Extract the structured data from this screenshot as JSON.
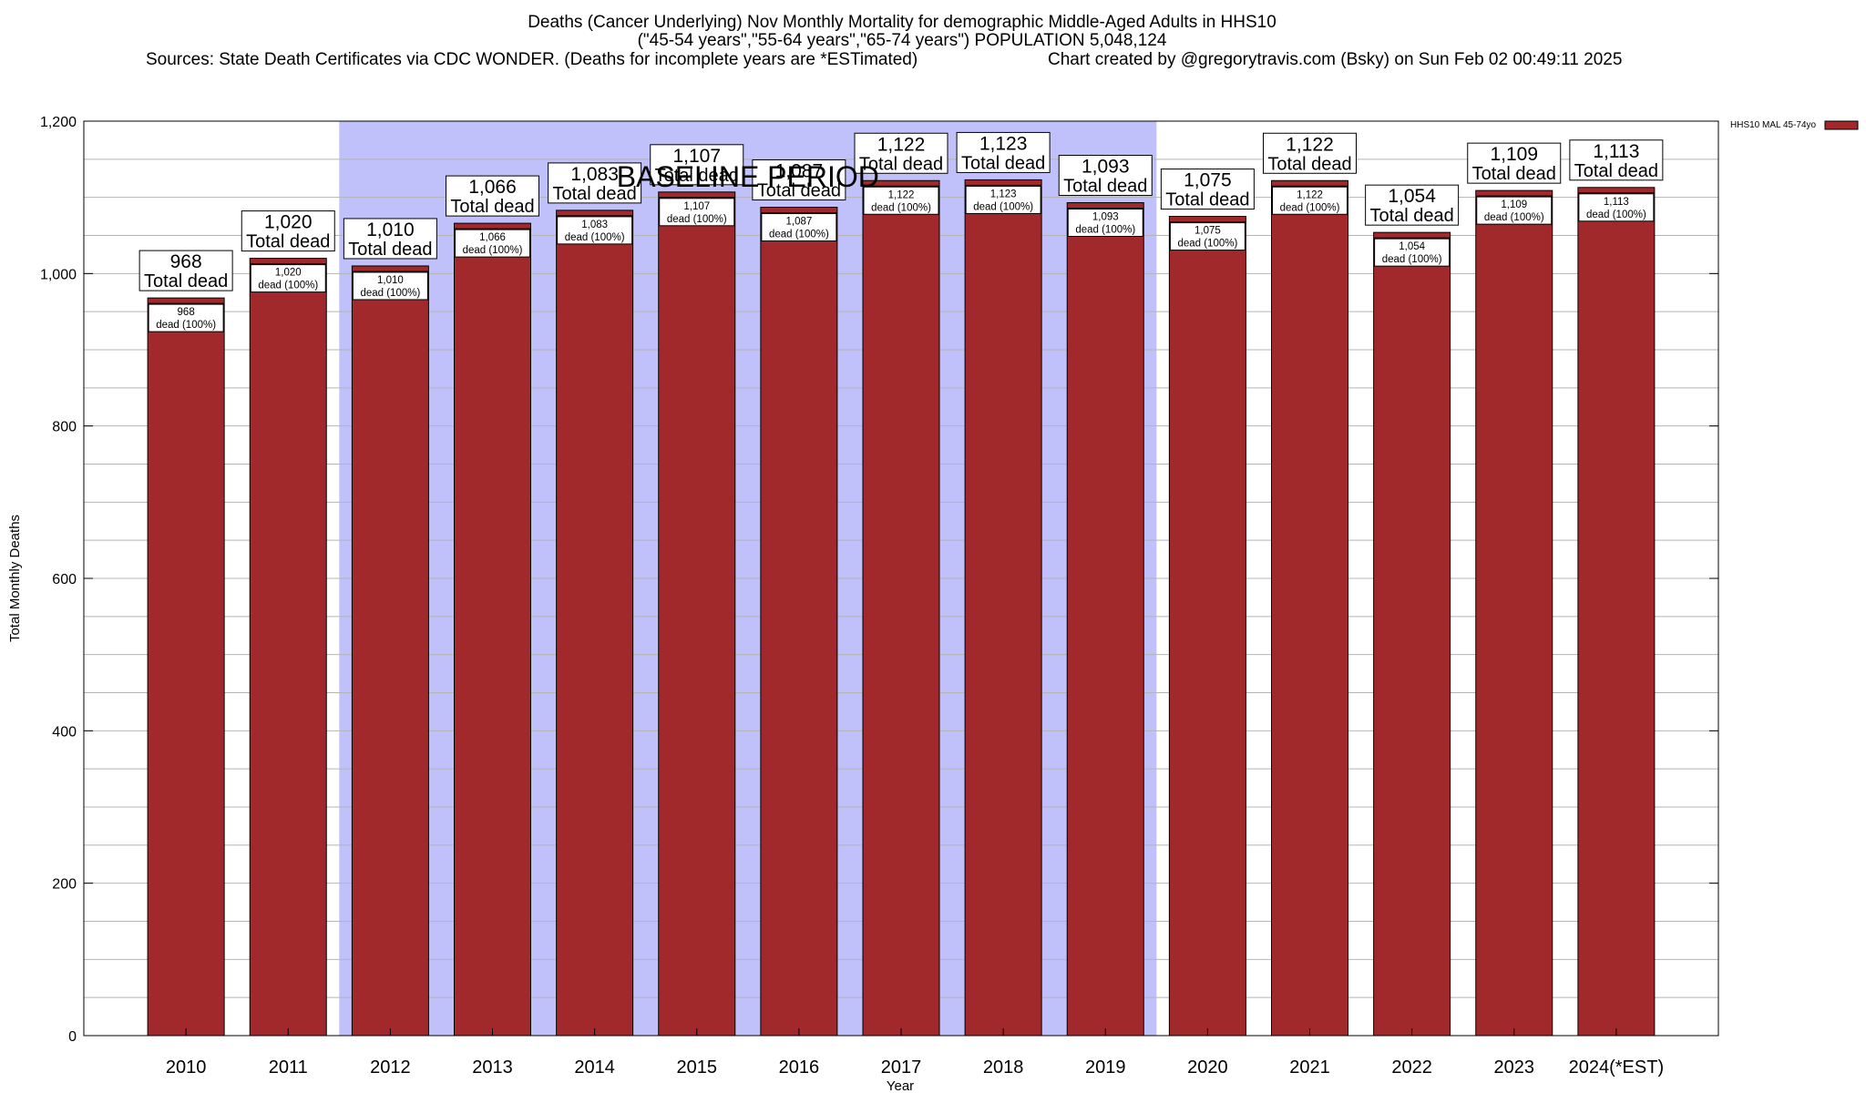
{
  "title": {
    "line1": "Deaths (Cancer Underlying) Nov Monthly Mortality for demographic Middle-Aged Adults in HHS10",
    "line2": "(\"45-54 years\",\"55-64 years\",\"65-74 years\") POPULATION 5,048,124",
    "line3_left": "Sources: State Death Certificates via CDC WONDER. (Deaths for incomplete years are *ESTimated)",
    "line3_right": "Chart created by @gregorytravis.com (Bsky) on Sun Feb 02 00:49:11 2025"
  },
  "colors": {
    "bar": "#a1292b",
    "baseline_band": "#c0c0fa",
    "grid": "#b4b4b4"
  },
  "chart_data": {
    "type": "bar",
    "xlabel": "Year",
    "ylabel": "Total Monthly Deaths",
    "ylim": [
      0,
      1200
    ],
    "yticks": [
      0,
      200,
      400,
      600,
      800,
      1000,
      1200
    ],
    "ytick_labels": [
      "0",
      "200",
      "400",
      "600",
      "800",
      "1,000",
      "1,200"
    ],
    "grid": true,
    "legend": {
      "label": "HHS10 MAL 45-74yo",
      "position": "top-right"
    },
    "categories": [
      "2010",
      "2011",
      "2012",
      "2013",
      "2014",
      "2015",
      "2016",
      "2017",
      "2018",
      "2019",
      "2020",
      "2021",
      "2022",
      "2023",
      "2024(*EST)"
    ],
    "values": [
      968,
      1020,
      1010,
      1066,
      1083,
      1107,
      1087,
      1122,
      1123,
      1093,
      1075,
      1122,
      1054,
      1109,
      1113
    ],
    "value_labels": [
      "968",
      "1,020",
      "1,010",
      "1,066",
      "1,083",
      "1,107",
      "1,087",
      "1,122",
      "1,123",
      "1,093",
      "1,075",
      "1,122",
      "1,054",
      "1,109",
      "1,113"
    ],
    "total_label": "Total dead",
    "share_label": "dead (100%)",
    "baseline_period": {
      "label": "BASELINE PERIOD",
      "start": "2012",
      "end": "2019"
    }
  }
}
